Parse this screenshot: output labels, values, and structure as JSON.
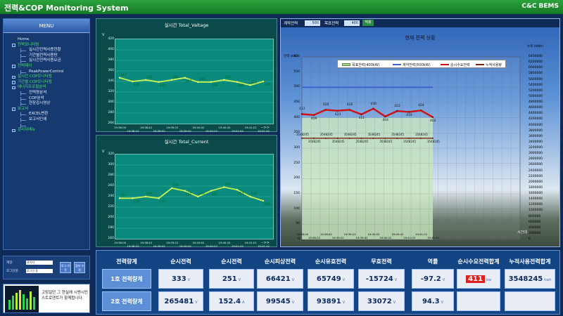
{
  "header": {
    "title": "전력&COP Monitoring System",
    "brand": "C&C BEMS"
  },
  "sidebar": {
    "title": "MENU",
    "items": [
      {
        "label": "Home",
        "level": 0,
        "color": "white"
      },
      {
        "label": "전력모니터링",
        "level": 0,
        "color": "green"
      },
      {
        "label": "실시간전력사용현황",
        "level": 1,
        "color": "white"
      },
      {
        "label": "기간별전력사용량",
        "level": 1,
        "color": "white"
      },
      {
        "label": "실시간전력사용요금",
        "level": 1,
        "color": "white"
      },
      {
        "label": "전력제어",
        "level": 0,
        "color": "green"
      },
      {
        "label": "PeakPowerControl",
        "level": 1,
        "color": "white"
      },
      {
        "label": "실시간 COP모니터링",
        "level": 0,
        "color": "green"
      },
      {
        "label": "기간별 COP모니터링",
        "level": 0,
        "color": "green"
      },
      {
        "label": "에너지프로필분석",
        "level": 0,
        "color": "green"
      },
      {
        "label": "전력량분석",
        "level": 1,
        "color": "white"
      },
      {
        "label": "COP분석",
        "level": 1,
        "color": "white"
      },
      {
        "label": "현장감시영상",
        "level": 1,
        "color": "white"
      },
      {
        "label": "보고서",
        "level": 0,
        "color": "green"
      },
      {
        "label": "EXCEL변환",
        "level": 1,
        "color": "white"
      },
      {
        "label": "보고서인쇄",
        "level": 1,
        "color": "white"
      },
      {
        "label": "",
        "level": 1,
        "color": "white"
      },
      {
        "label": "관리자메뉴",
        "level": 0,
        "color": "green"
      }
    ]
  },
  "login": {
    "id_label": "계정:",
    "pw_label": "로그인명:",
    "id_value": "관리자",
    "pw_value": "로그인 중",
    "logout": "로그 아웃",
    "info": "정보 수정"
  },
  "info_box": {
    "text": "고림일단 그 현실에 시멘시민스트로앤트가 함께합니다."
  },
  "voltage_panel": {
    "title": "실시간 Total_Valtage",
    "unit": "V",
    "arrow": "-->>",
    "y_ticks": [
      "420",
      "400",
      "380",
      "360",
      "340",
      "320",
      "300",
      "280",
      "260"
    ],
    "x_ticks": [
      "19:38:00",
      "19:38:22",
      "19:38:42",
      "19:39:02",
      "19:39:22",
      "19:39:42",
      "19:40:02",
      "19:40:22",
      "19:40:42",
      "19:41:02",
      "19:41:22",
      "19:41:42"
    ],
    "labels": [
      "347",
      "340",
      "343",
      "339",
      "343",
      "347",
      "339",
      "339",
      "343",
      "339",
      "333",
      "340"
    ]
  },
  "current_panel": {
    "title": "실시간 Total_Current",
    "unit": "V",
    "arrow": "-->>",
    "y_ticks": [
      "320",
      "300",
      "280",
      "260",
      "240",
      "220",
      "200",
      "180",
      "160"
    ],
    "x_ticks": [
      "19:38:00",
      "19:38:22",
      "19:38:42",
      "19:39:02",
      "19:39:22",
      "19:39:42",
      "19:40:02",
      "19:40:22",
      "19:40:42",
      "19:41:02",
      "19:41:22",
      "19:41:42"
    ],
    "labels": [
      "237",
      "237",
      "240",
      "237",
      "256",
      "251",
      "240",
      "251",
      "258",
      "253",
      "240",
      "232"
    ]
  },
  "right_panel": {
    "contract_label": "계약전력",
    "contract_value": "500",
    "target_label": "목표전력",
    "target_value": "400",
    "apply": "적용",
    "title": "현재 전력 상황",
    "unit_left": "전력 (kW)",
    "unit_right": "누적 (kWh)",
    "legend": [
      "목표전력(400kW)",
      "계약전력(500kW)",
      "순시수요전력",
      "누적사용량"
    ],
    "left_ticks": [
      "600",
      "550",
      "500",
      "450",
      "400",
      "350",
      "300",
      "250",
      "200",
      "150",
      "100",
      "50",
      "0"
    ],
    "right_ticks": [
      "6400000",
      "6200000",
      "6000000",
      "5800000",
      "5600000",
      "5400000",
      "5200000",
      "5000000",
      "4800000",
      "4600000",
      "4400000",
      "4200000",
      "4000000",
      "3800000",
      "3600000",
      "3400000",
      "3200000",
      "3000000",
      "2800000",
      "2600000",
      "2400000",
      "2200000",
      "2000000",
      "1800000",
      "1600000",
      "1400000",
      "1200000",
      "1000000",
      "800000",
      "600000",
      "400000",
      "200000",
      "0"
    ],
    "x_ticks": [
      "19:38:00",
      "19:38:22",
      "19:38:42",
      "19:39:02",
      "19:39:22",
      "19:39:42",
      "19:40:02",
      "19:40:22",
      "19:40:42",
      "19:41:02",
      "19:41:22",
      "19:41:42"
    ],
    "demand_labels": [
      "412",
      "409",
      "426",
      "423",
      "426",
      "411",
      "430",
      "404",
      "422",
      "419",
      "424",
      "402"
    ],
    "sum_labels": [
      "3548245",
      "3548245",
      "3548245",
      "3548245",
      "3548245",
      "3548245",
      "3548245",
      "3548245",
      "3548245",
      "3548245",
      "3548245",
      "3548245"
    ],
    "bottom_label": "시간대"
  },
  "table": {
    "headers": [
      "전력량계",
      "순시전력",
      "순시전력",
      "순시피상전력",
      "순시유효전력",
      "무효전력",
      "역률",
      "순시수요전력합계",
      "누적사용전력합계"
    ],
    "rows": [
      {
        "label": "1호 전력량계",
        "values": [
          {
            "n": "333",
            "u": "V"
          },
          {
            "n": "251",
            "u": "V"
          },
          {
            "n": "66421",
            "u": "V"
          },
          {
            "n": "65749",
            "u": "V"
          },
          {
            "n": "-15724",
            "u": "V"
          },
          {
            "n": "-97.2",
            "u": "V"
          },
          {
            "n": "411",
            "u": "kw",
            "hl": true
          },
          {
            "n": "3548245",
            "u": "kwh"
          }
        ]
      },
      {
        "label": "2호 전력량계",
        "values": [
          {
            "n": "265481",
            "u": "V"
          },
          {
            "n": "152.4",
            "u": "A"
          },
          {
            "n": "99545",
            "u": "V"
          },
          {
            "n": "93891",
            "u": "V"
          },
          {
            "n": "33072",
            "u": "V"
          },
          {
            "n": "94.3",
            "u": "V"
          },
          {
            "n": "",
            "u": ""
          },
          {
            "n": "",
            "u": ""
          }
        ]
      }
    ]
  }
}
